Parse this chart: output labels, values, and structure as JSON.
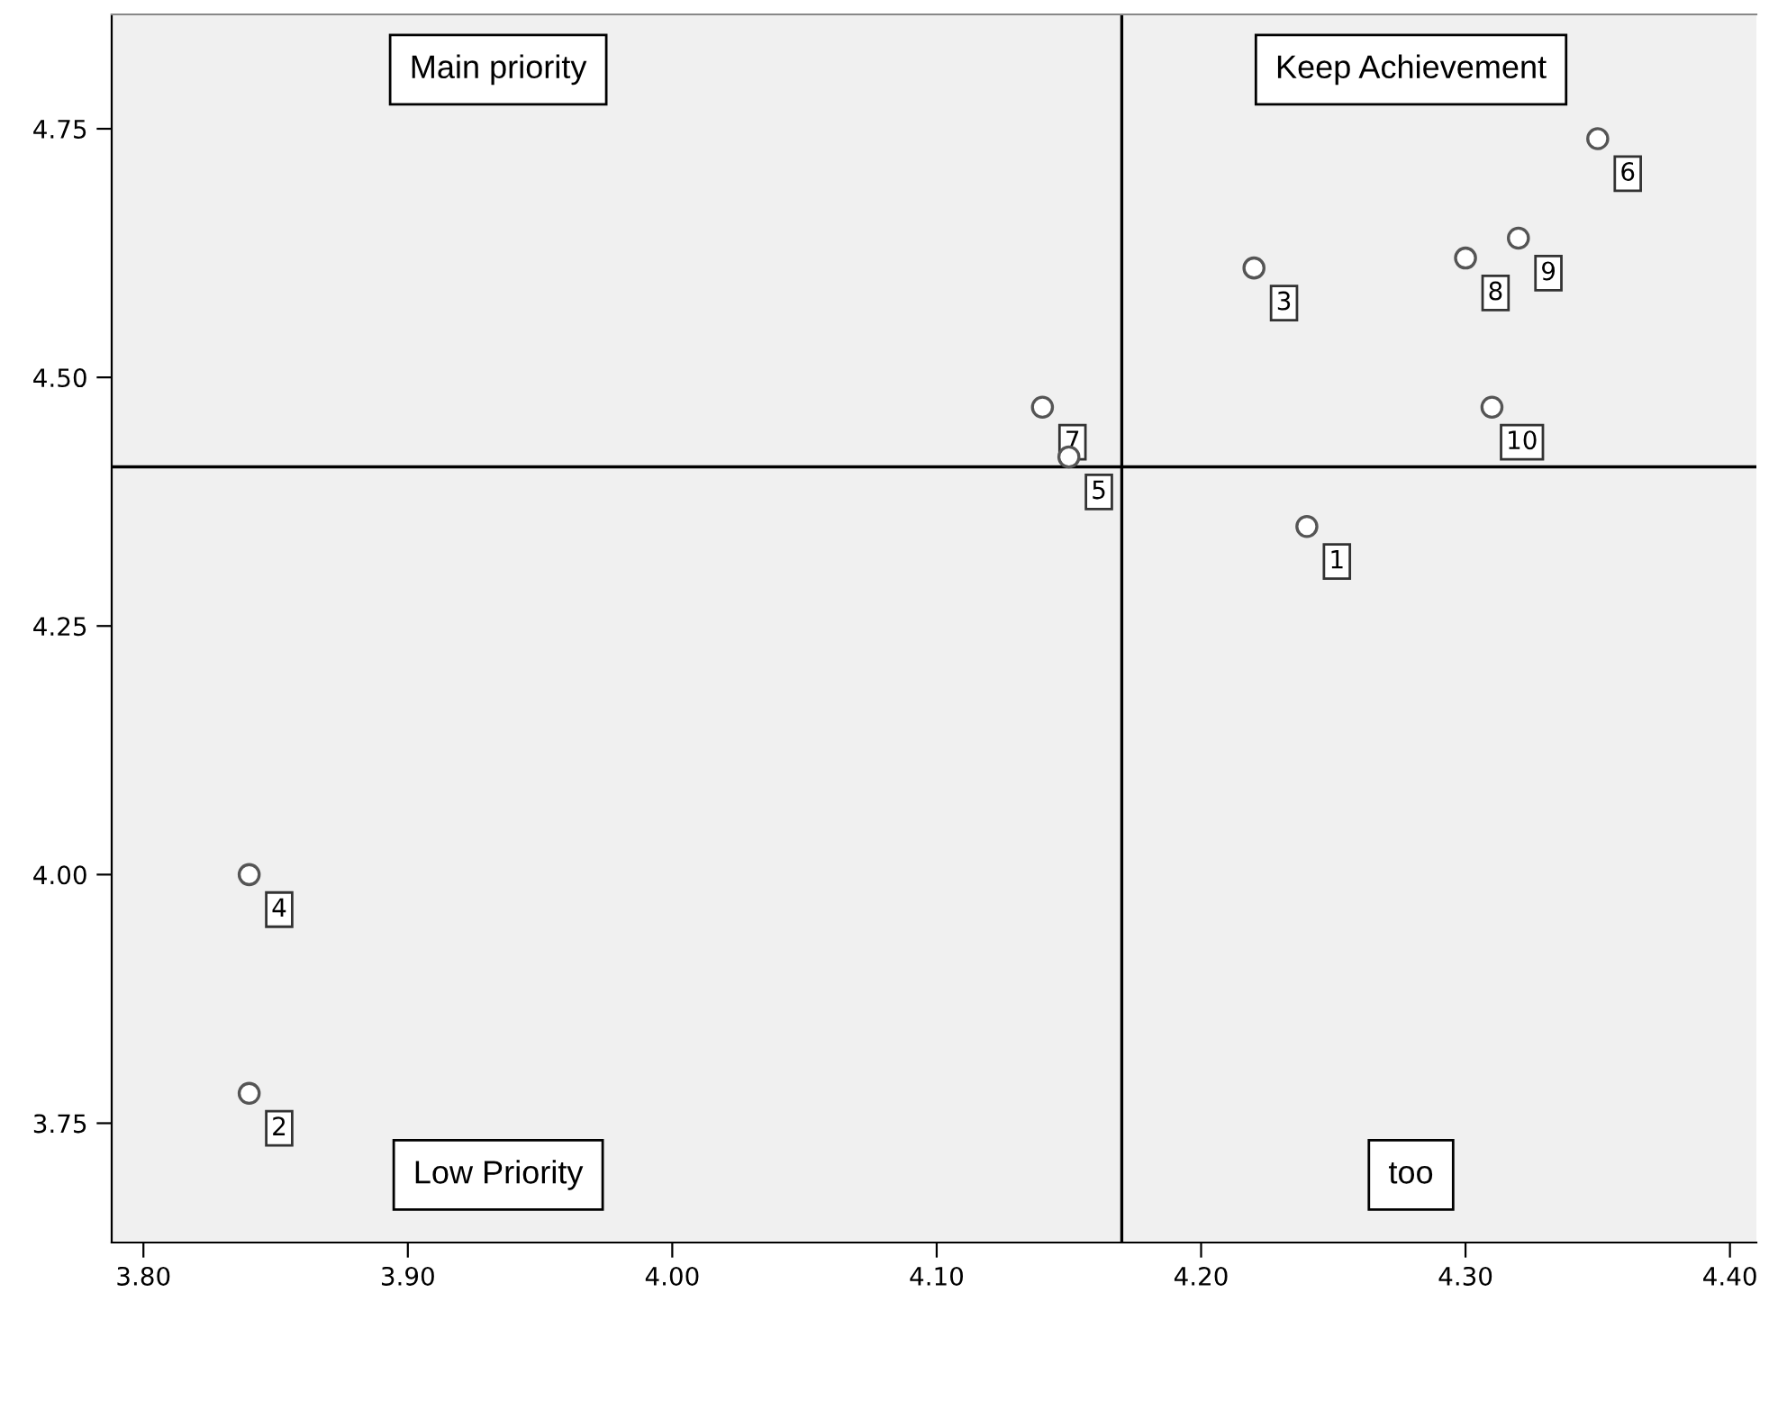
{
  "chart_data": {
    "type": "scatter",
    "x": [
      4.24,
      3.84,
      4.22,
      3.84,
      4.15,
      4.35,
      4.14,
      4.3,
      4.32,
      4.31
    ],
    "values": [
      4.35,
      3.78,
      4.61,
      4.0,
      4.42,
      4.74,
      4.47,
      4.62,
      4.64,
      4.47
    ],
    "color": "#ffffff",
    "marker": "circle",
    "xlim": [
      3.788,
      4.41
    ],
    "ylim": [
      3.63,
      4.865
    ],
    "xticks": [
      {
        "value": 3.8,
        "label": "3.80"
      },
      {
        "value": 3.9,
        "label": "3.90"
      },
      {
        "value": 4.0,
        "label": "4.00"
      },
      {
        "value": 4.1,
        "label": "4.10"
      },
      {
        "value": 4.2,
        "label": "4.20"
      },
      {
        "value": 4.3,
        "label": "4.30"
      },
      {
        "value": 4.4,
        "label": "4.40"
      }
    ],
    "yticks": [
      {
        "value": 3.75,
        "label": "3.75"
      },
      {
        "value": 4.0,
        "label": "4.00"
      },
      {
        "value": 4.25,
        "label": "4.25"
      },
      {
        "value": 4.5,
        "label": "4.50"
      },
      {
        "value": 4.75,
        "label": "4.75"
      }
    ],
    "ref_lines": [
      {
        "axis": "x",
        "value": 4.17,
        "color": "#000000"
      },
      {
        "axis": "y",
        "value": 4.41,
        "color": "#000000"
      }
    ],
    "grid": false,
    "annotations": [
      "Main priority",
      "Keep Achievement",
      "Low Priority",
      "too",
      {
        "text": "1",
        "x": 4.24,
        "y": 4.35
      },
      {
        "text": "2",
        "x": 3.84,
        "y": 3.78
      },
      {
        "text": "3",
        "x": 4.22,
        "y": 4.61
      },
      {
        "text": "4",
        "x": 3.84,
        "y": 4.0
      },
      {
        "text": "5",
        "x": 4.15,
        "y": 4.42
      },
      {
        "text": "6",
        "x": 4.35,
        "y": 4.74
      },
      {
        "text": "7",
        "x": 4.14,
        "y": 4.47
      },
      {
        "text": "8",
        "x": 4.3,
        "y": 4.62
      },
      {
        "text": "9",
        "x": 4.32,
        "y": 4.64
      },
      {
        "text": "10",
        "x": 4.31,
        "y": 4.47
      }
    ]
  }
}
